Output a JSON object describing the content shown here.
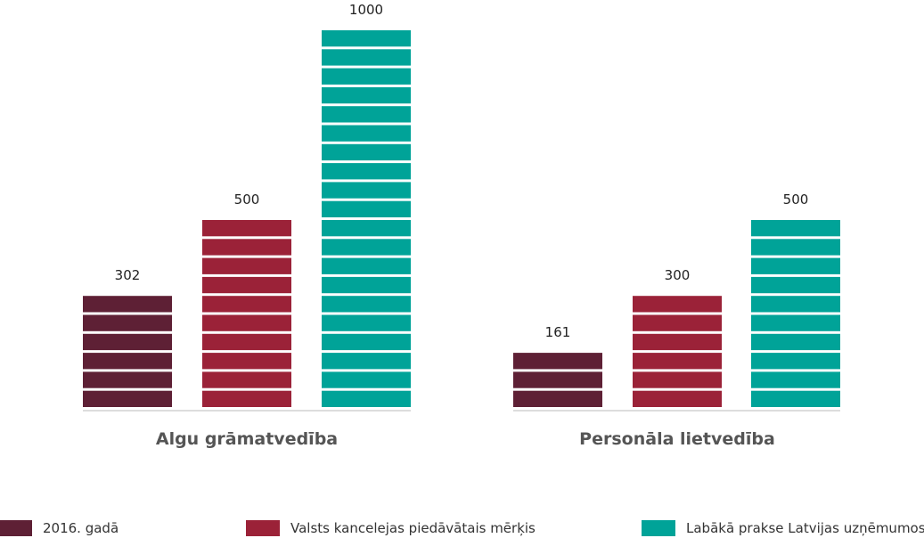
{
  "chart_data": {
    "type": "bar",
    "title": "",
    "xlabel": "",
    "ylabel": "",
    "categories": [
      "Algu grāmatvedība",
      "Personāla lietvedība"
    ],
    "series": [
      {
        "name": "2016. gadā",
        "values": [
          302,
          161
        ],
        "color": "#5e2035"
      },
      {
        "name": "Valsts kancelejas piedāvātais mērķis",
        "values": [
          500,
          300
        ],
        "color": "#9b2238"
      },
      {
        "name": "Labākā prakse Latvijas uzņēmumos",
        "values": [
          1000,
          500
        ],
        "color": "#00a398"
      }
    ],
    "ylim": [
      0,
      1000
    ],
    "segment_value": 50,
    "grid": false,
    "legend_position": "bottom",
    "axis_color": "#dddddd"
  }
}
